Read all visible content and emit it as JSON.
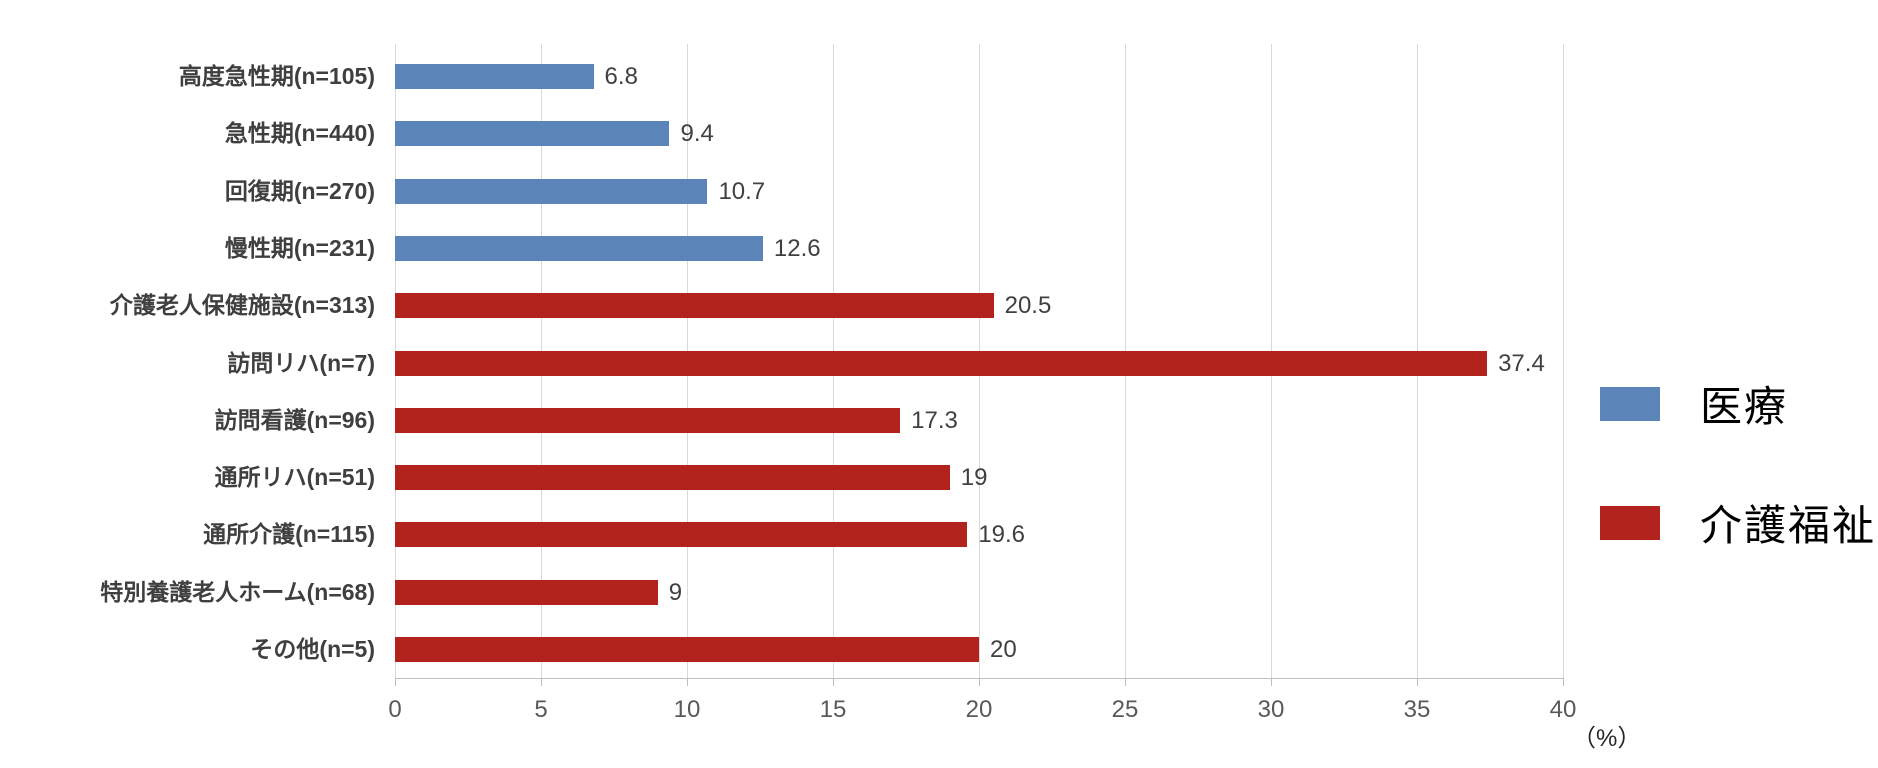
{
  "chart_data": {
    "type": "bar",
    "orientation": "horizontal",
    "title": "",
    "xlabel": "",
    "ylabel": "",
    "x_unit_label": "（%）",
    "xlim": [
      0,
      40
    ],
    "x_ticks": [
      0,
      5,
      10,
      15,
      20,
      25,
      30,
      35,
      40
    ],
    "grid": true,
    "legend_position": "right",
    "categories": [
      "高度急性期(n=105)",
      "急性期(n=440)",
      "回復期(n=270)",
      "慢性期(n=231)",
      "介護老人保健施設(n=313)",
      "訪問リハ(n=7)",
      "訪問看護(n=96)",
      "通所リハ(n=51)",
      "通所介護(n=115)",
      "特別養護老人ホーム(n=68)",
      "その他(n=5)"
    ],
    "values": [
      6.8,
      9.4,
      10.7,
      12.6,
      20.5,
      37.4,
      17.3,
      19,
      19.6,
      9,
      20
    ],
    "value_labels": [
      "6.8",
      "9.4",
      "10.7",
      "12.6",
      "20.5",
      "37.4",
      "17.3",
      "19",
      "19.6",
      "9",
      "20"
    ],
    "series_index": [
      0,
      0,
      0,
      0,
      1,
      1,
      1,
      1,
      1,
      1,
      1
    ],
    "legend": [
      {
        "label": "医療",
        "color": "#5b84b8"
      },
      {
        "label": "介護福祉",
        "color": "#b2231d"
      }
    ]
  },
  "colors": {
    "gridline": "#d9d9d9",
    "axis": "#bfbfbf",
    "value_text": "#404040",
    "category_text": "#3f3f3f",
    "tick_text": "#595959"
  }
}
